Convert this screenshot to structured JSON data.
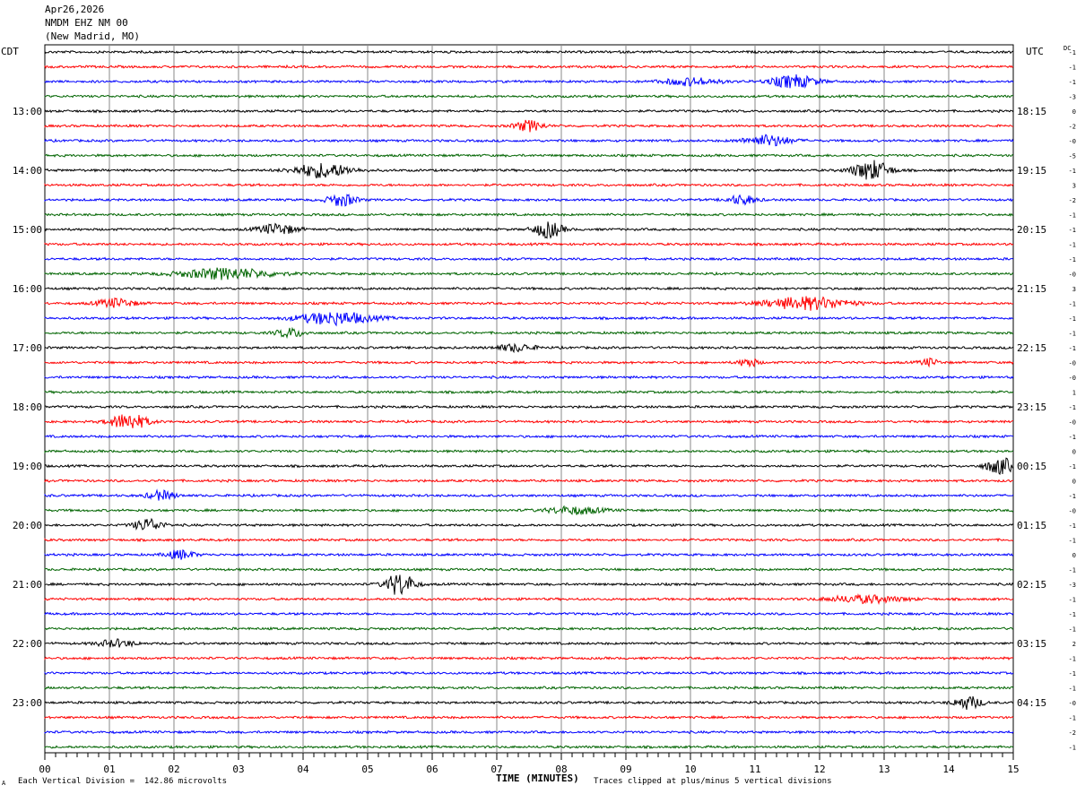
{
  "header": {
    "date": "Apr26,2026",
    "station": "NMDM EHZ NM 00",
    "location": "(New Madrid, MO)"
  },
  "left_zone_label": "CDT",
  "right_zone_label": "UTC",
  "dc_header": "DC",
  "footer": {
    "scale_note": "Each Vertical Division =  142.86 microvolts",
    "xlabel": "TIME (MINUTES)",
    "clip_note": "Traces clipped at plus/minus 5 vertical divisions",
    "corner_mark": "A"
  },
  "chart_data": {
    "type": "line",
    "title": "NMDM EHZ NM 00",
    "xlabel": "TIME (MINUTES)",
    "xlim": [
      0,
      15
    ],
    "x_ticks": [
      "00",
      "01",
      "02",
      "03",
      "04",
      "05",
      "06",
      "07",
      "08",
      "09",
      "10",
      "11",
      "12",
      "13",
      "14",
      "15"
    ],
    "rows_per_hour": 4,
    "trace_colors": [
      "#000000",
      "#ff0000",
      "#0000ff",
      "#006400"
    ],
    "left_time_labels": [
      "13:00",
      "14:00",
      "15:00",
      "16:00",
      "17:00",
      "18:00",
      "19:00",
      "20:00",
      "21:00",
      "22:00",
      "23:00"
    ],
    "right_time_labels": [
      "18:15",
      "19:15",
      "20:15",
      "21:15",
      "22:15",
      "23:15",
      "00:15",
      "01:15",
      "02:15",
      "03:15",
      "04:15"
    ],
    "dc_offsets": [
      "-1",
      "-1",
      "-1",
      "-3",
      "0",
      "-2",
      "-0",
      "-5",
      "-1",
      "3",
      "-2",
      "-1",
      "-1",
      "-1",
      "-1",
      "-0",
      "3",
      "-1",
      "-1",
      "-1",
      "-1",
      "-0",
      "-0",
      "1",
      "-1",
      "-0",
      "-1",
      "0",
      "-1",
      "0",
      "-1",
      "-0",
      "-1",
      "-1",
      "0",
      "-1",
      "-3",
      "-1",
      "-1",
      "-1",
      "2",
      "-1",
      "-1",
      "-1",
      "-0",
      "-1",
      "-2",
      "-1"
    ]
  }
}
